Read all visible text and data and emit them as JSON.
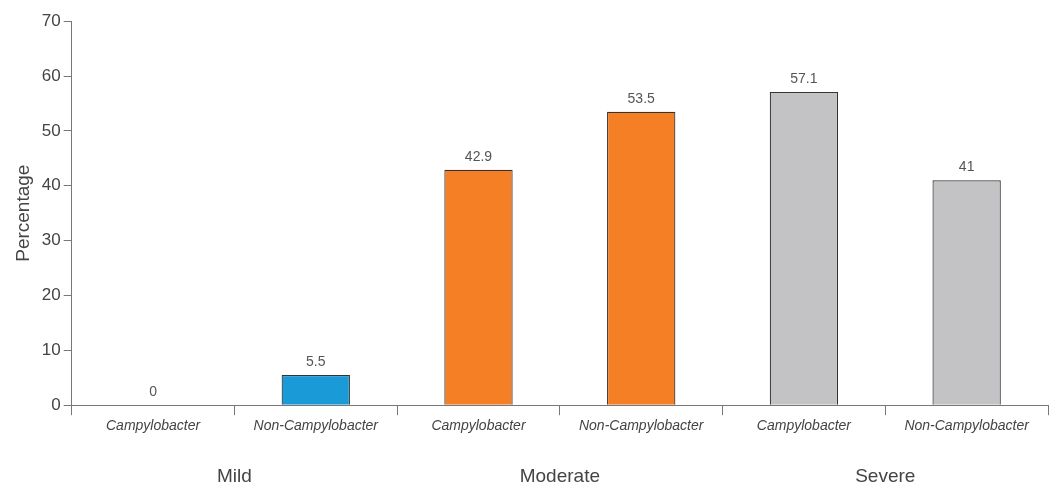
{
  "chart_data": {
    "type": "bar",
    "ylabel": "Percentage",
    "categories": [
      "Campylobacter",
      "Non-Campylobacter",
      "Campylobacter",
      "Non-Campylobacter",
      "Campylobacter",
      "Non-Campylobacter"
    ],
    "values": [
      0,
      5.5,
      42.9,
      53.5,
      57.1,
      41
    ],
    "colors": [
      "#1a9ad6",
      "#1a9ad6",
      "#f57f25",
      "#f57f25",
      "#c3c3c5",
      "#c3c3c5"
    ],
    "ylim": [
      0,
      70
    ],
    "yticks": [
      0,
      10,
      20,
      30,
      40,
      50,
      60,
      70
    ],
    "data_labels": true,
    "grid": false,
    "legend": false,
    "annotations": [
      "Mild",
      "Moderate",
      "Severe"
    ]
  }
}
